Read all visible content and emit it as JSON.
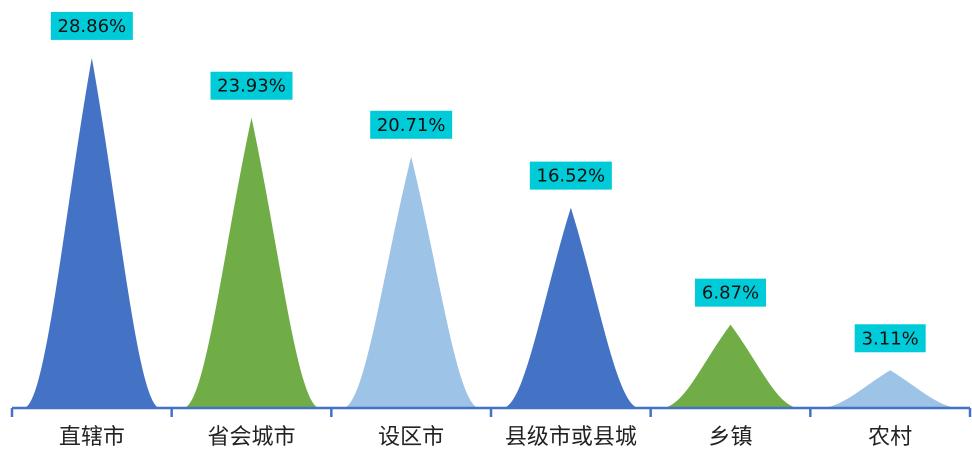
{
  "chart_data": {
    "type": "bar",
    "shape": "peak",
    "title": "",
    "xlabel": "",
    "ylabel": "",
    "ylim": [
      0,
      30
    ],
    "grid": false,
    "legend": "none",
    "categories": [
      "直辖市",
      "省会城市",
      "设区市",
      "县级市或县城",
      "乡镇",
      "农村"
    ],
    "values": [
      28.86,
      23.93,
      20.71,
      16.52,
      6.87,
      3.11
    ],
    "data_labels": [
      "28.86%",
      "23.93%",
      "20.71%",
      "16.52%",
      "6.87%",
      "3.11%"
    ],
    "bar_colors": [
      "#4472C4",
      "#70AD47",
      "#9DC3E6",
      "#4472C4",
      "#70AD47",
      "#9DC3E6"
    ],
    "label_bg_color": "#00CCD9",
    "axis_color": "#4472C4"
  }
}
